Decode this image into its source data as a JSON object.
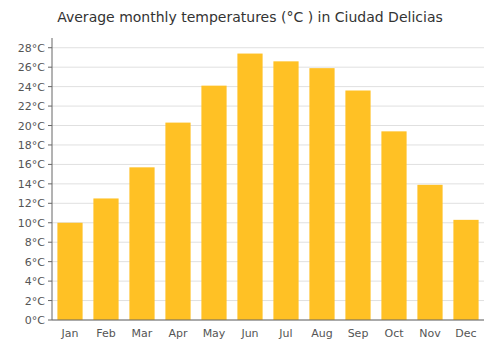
{
  "chart_data": {
    "type": "bar",
    "title": "Average monthly temperatures (°C ) in Ciudad Delicias",
    "categories": [
      "Jan",
      "Feb",
      "Mar",
      "Apr",
      "May",
      "Jun",
      "Jul",
      "Aug",
      "Sep",
      "Oct",
      "Nov",
      "Dec"
    ],
    "values": [
      10.0,
      12.5,
      15.7,
      20.3,
      24.1,
      27.4,
      26.6,
      25.9,
      23.6,
      19.4,
      13.9,
      10.3
    ],
    "color": "#FFC125",
    "ylim": [
      0,
      29
    ],
    "yticks": [
      {
        "value": 0,
        "label": "0°C"
      },
      {
        "value": 2,
        "label": "2°C"
      },
      {
        "value": 4,
        "label": "4°C"
      },
      {
        "value": 6,
        "label": "6°C"
      },
      {
        "value": 8,
        "label": "8°C"
      },
      {
        "value": 10,
        "label": "10°C"
      },
      {
        "value": 12,
        "label": "12°C"
      },
      {
        "value": 14,
        "label": "14°C"
      },
      {
        "value": 16,
        "label": "16°C"
      },
      {
        "value": 18,
        "label": "18°C"
      },
      {
        "value": 20,
        "label": "20°C"
      },
      {
        "value": 22,
        "label": "22°C"
      },
      {
        "value": 24,
        "label": "24°C"
      },
      {
        "value": 26,
        "label": "26°C"
      },
      {
        "value": 28,
        "label": "28°C"
      }
    ],
    "grid": true
  }
}
